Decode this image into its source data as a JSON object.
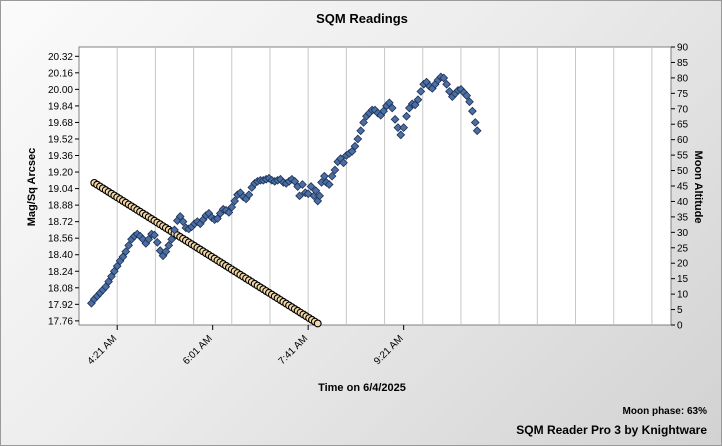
{
  "chart_data": {
    "type": "scatter",
    "title": "SQM Readings",
    "xlabel": "Time on 6/4/2025",
    "ylabel": "Mag/Sq Arcsec",
    "y2label": "Moon Altitude",
    "x_ticks": [
      "4:21 AM",
      "6:01 AM",
      "7:41 AM",
      "9:21 AM"
    ],
    "x_tick_minutes": [
      261,
      361,
      461,
      561
    ],
    "xlim_minutes": [
      221,
      841
    ],
    "ylim": [
      17.72,
      20.41
    ],
    "y_ticks": [
      17.76,
      17.92,
      18.08,
      18.24,
      18.4,
      18.56,
      18.72,
      18.88,
      19.04,
      19.2,
      19.36,
      19.52,
      19.68,
      19.84,
      20.0,
      20.16,
      20.32
    ],
    "y2lim": [
      0,
      90
    ],
    "y2_ticks": [
      0,
      5,
      10,
      15,
      20,
      25,
      30,
      35,
      40,
      45,
      50,
      55,
      60,
      65,
      70,
      75,
      80,
      85,
      90
    ],
    "grid": true,
    "series": [
      {
        "name": "",
        "axis": "left",
        "marker": "diamond",
        "color": "#4a6fa5",
        "points": [
          [
            234,
            17.93
          ],
          [
            237,
            17.97
          ],
          [
            240,
            18.0
          ],
          [
            243,
            18.03
          ],
          [
            246,
            18.06
          ],
          [
            249,
            18.09
          ],
          [
            252,
            18.14
          ],
          [
            255,
            18.19
          ],
          [
            258,
            18.24
          ],
          [
            261,
            18.29
          ],
          [
            264,
            18.34
          ],
          [
            267,
            18.38
          ],
          [
            270,
            18.43
          ],
          [
            273,
            18.49
          ],
          [
            276,
            18.55
          ],
          [
            279,
            18.58
          ],
          [
            282,
            18.6
          ],
          [
            285,
            18.58
          ],
          [
            288,
            18.55
          ],
          [
            291,
            18.51
          ],
          [
            294,
            18.55
          ],
          [
            297,
            18.6
          ],
          [
            300,
            18.59
          ],
          [
            303,
            18.52
          ],
          [
            306,
            18.44
          ],
          [
            309,
            18.39
          ],
          [
            312,
            18.43
          ],
          [
            315,
            18.49
          ],
          [
            318,
            18.55
          ],
          [
            321,
            18.64
          ],
          [
            324,
            18.73
          ],
          [
            327,
            18.77
          ],
          [
            330,
            18.72
          ],
          [
            333,
            18.66
          ],
          [
            336,
            18.65
          ],
          [
            339,
            18.67
          ],
          [
            342,
            18.7
          ],
          [
            345,
            18.72
          ],
          [
            348,
            18.7
          ],
          [
            351,
            18.74
          ],
          [
            354,
            18.78
          ],
          [
            357,
            18.8
          ],
          [
            360,
            18.76
          ],
          [
            363,
            18.74
          ],
          [
            366,
            18.75
          ],
          [
            369,
            18.8
          ],
          [
            372,
            18.84
          ],
          [
            375,
            18.83
          ],
          [
            378,
            18.81
          ],
          [
            381,
            18.86
          ],
          [
            384,
            18.92
          ],
          [
            387,
            18.98
          ],
          [
            390,
            19.0
          ],
          [
            393,
            18.96
          ],
          [
            396,
            18.94
          ],
          [
            399,
            18.98
          ],
          [
            402,
            19.05
          ],
          [
            405,
            19.09
          ],
          [
            408,
            19.11
          ],
          [
            411,
            19.12
          ],
          [
            414,
            19.12
          ],
          [
            417,
            19.13
          ],
          [
            420,
            19.14
          ],
          [
            423,
            19.12
          ],
          [
            426,
            19.11
          ],
          [
            429,
            19.12
          ],
          [
            432,
            19.13
          ],
          [
            435,
            19.1
          ],
          [
            438,
            19.09
          ],
          [
            441,
            19.11
          ],
          [
            444,
            19.13
          ],
          [
            447,
            19.11
          ],
          [
            450,
            19.06
          ],
          [
            452,
            18.97
          ],
          [
            455,
            19.08
          ],
          [
            458,
            19.0
          ],
          [
            461,
            18.99
          ],
          [
            464,
            19.06
          ],
          [
            467,
            18.97
          ],
          [
            469,
            19.02
          ],
          [
            471,
            18.92
          ],
          [
            473,
            18.97
          ],
          [
            475,
            19.1
          ],
          [
            478,
            19.16
          ],
          [
            480,
            19.1
          ],
          [
            483,
            19.08
          ],
          [
            486,
            19.16
          ],
          [
            489,
            19.22
          ],
          [
            492,
            19.3
          ],
          [
            495,
            19.33
          ],
          [
            498,
            19.29
          ],
          [
            501,
            19.36
          ],
          [
            504,
            19.38
          ],
          [
            507,
            19.4
          ],
          [
            510,
            19.45
          ],
          [
            513,
            19.52
          ],
          [
            516,
            19.6
          ],
          [
            519,
            19.68
          ],
          [
            522,
            19.74
          ],
          [
            525,
            19.77
          ],
          [
            528,
            19.8
          ],
          [
            531,
            19.8
          ],
          [
            534,
            19.77
          ],
          [
            537,
            19.75
          ],
          [
            540,
            19.79
          ],
          [
            543,
            19.84
          ],
          [
            546,
            19.87
          ],
          [
            549,
            19.82
          ],
          [
            552,
            19.71
          ],
          [
            555,
            19.63
          ],
          [
            558,
            19.56
          ],
          [
            561,
            19.63
          ],
          [
            564,
            19.74
          ],
          [
            567,
            19.82
          ],
          [
            570,
            19.86
          ],
          [
            573,
            19.85
          ],
          [
            576,
            19.9
          ],
          [
            579,
            19.98
          ],
          [
            582,
            20.05
          ],
          [
            585,
            20.07
          ],
          [
            588,
            20.03
          ],
          [
            591,
            20.01
          ],
          [
            594,
            20.05
          ],
          [
            597,
            20.09
          ],
          [
            600,
            20.12
          ],
          [
            603,
            20.11
          ],
          [
            606,
            20.05
          ],
          [
            609,
            19.98
          ],
          [
            612,
            19.93
          ],
          [
            615,
            19.96
          ],
          [
            618,
            19.99
          ],
          [
            621,
            20.0
          ],
          [
            624,
            19.97
          ],
          [
            627,
            19.94
          ],
          [
            630,
            19.88
          ],
          [
            633,
            19.79
          ],
          [
            636,
            19.68
          ],
          [
            638,
            19.6
          ]
        ]
      },
      {
        "name": "",
        "axis": "right",
        "marker": "circle",
        "color": "#f3d9a8",
        "points": [
          [
            237,
            46.0
          ],
          [
            471,
            0.5
          ]
        ],
        "count": 79
      }
    ]
  },
  "footer": {
    "moon_phase": "Moon phase: 63%",
    "credit": "SQM Reader Pro 3 by Knightware"
  }
}
